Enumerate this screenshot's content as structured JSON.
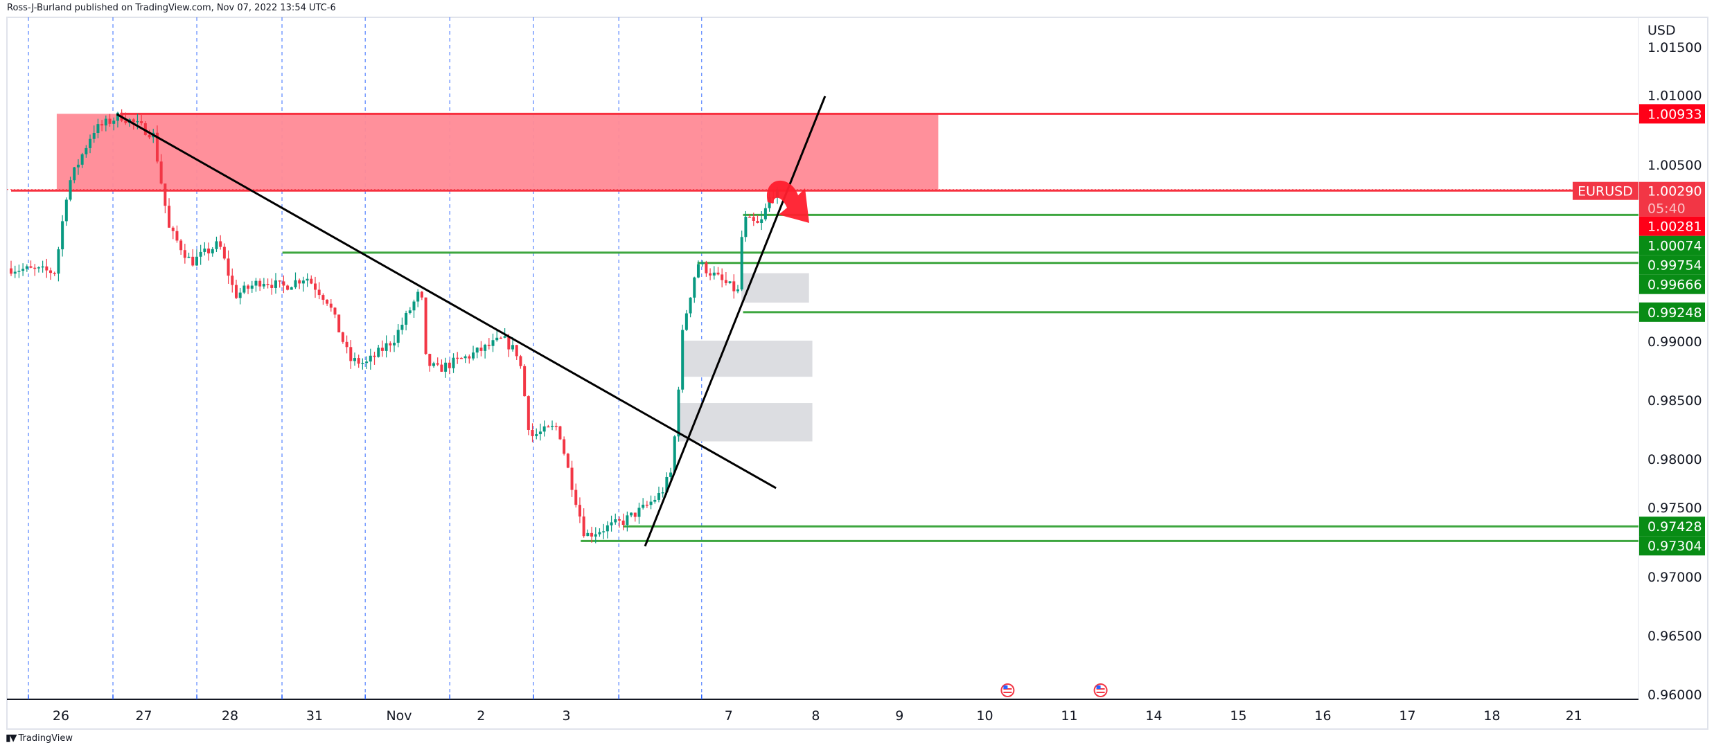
{
  "header": {
    "text": "Ross-J-Burland published on TradingView.com, Nov 07, 2022 13:54 UTC-6"
  },
  "footer": {
    "logo": "TV",
    "brand": "TradingView"
  },
  "colors": {
    "up": "#089981",
    "down": "#f23645",
    "level_green": "#3da63f",
    "label_green": "#088c15",
    "label_red": "#ff0018",
    "zone": "#ff8a96",
    "grey_box": "#dcdde1",
    "session": "#2962ff"
  },
  "chart_data": {
    "type": "candlestick",
    "symbol": "EURUSD",
    "currency": "USD",
    "last_price": "1.00290",
    "countdown": "05:40",
    "ylim": [
      0.96,
      1.015
    ],
    "y_ticks": [
      "1.01500",
      "1.01000",
      "1.00500",
      "0.99000",
      "0.98500",
      "0.98000",
      "0.97500",
      "0.97000",
      "0.96500",
      "0.96000"
    ],
    "x_labels": [
      {
        "t": 0,
        "label": "26"
      },
      {
        "t": 0.98,
        "label": "27"
      },
      {
        "t": 2.0,
        "label": "28"
      },
      {
        "t": 3.0,
        "label": "31"
      },
      {
        "t": 4.0,
        "label": "Nov"
      },
      {
        "t": 4.97,
        "label": "2"
      },
      {
        "t": 5.98,
        "label": "3"
      },
      {
        "t": 7.9,
        "label": "7"
      },
      {
        "t": 8.93,
        "label": "8"
      },
      {
        "t": 9.92,
        "label": "9"
      },
      {
        "t": 10.93,
        "label": "10"
      },
      {
        "t": 11.93,
        "label": "11"
      },
      {
        "t": 12.93,
        "label": "14"
      },
      {
        "t": 13.93,
        "label": "15"
      },
      {
        "t": 14.93,
        "label": "16"
      },
      {
        "t": 15.93,
        "label": "17"
      },
      {
        "t": 16.93,
        "label": "18"
      },
      {
        "t": 17.9,
        "label": "21"
      }
    ],
    "session_breaks": [
      -0.385,
      0.615,
      1.607,
      2.615,
      3.6,
      4.6,
      5.59,
      6.6,
      7.58
    ],
    "price_path": [
      [
        -0.59,
        0.9962
      ],
      [
        -0.07,
        0.9959
      ],
      [
        0.08,
        1.0032
      ],
      [
        0.38,
        1.0079
      ],
      [
        0.7,
        1.0092
      ],
      [
        1.09,
        1.0076
      ],
      [
        1.28,
        0.9995
      ],
      [
        1.54,
        0.9967
      ],
      [
        1.87,
        0.9983
      ],
      [
        2.06,
        0.9939
      ],
      [
        2.38,
        0.9952
      ],
      [
        2.62,
        0.9946
      ],
      [
        2.9,
        0.9955
      ],
      [
        3.16,
        0.9934
      ],
      [
        3.42,
        0.9884
      ],
      [
        3.61,
        0.9881
      ],
      [
        3.94,
        0.9902
      ],
      [
        4.26,
        0.9944
      ],
      [
        4.32,
        0.9882
      ],
      [
        4.45,
        0.9876
      ],
      [
        4.84,
        0.9888
      ],
      [
        5.23,
        0.9902
      ],
      [
        5.42,
        0.9888
      ],
      [
        5.55,
        0.9819
      ],
      [
        5.88,
        0.9828
      ],
      [
        6.0,
        0.9791
      ],
      [
        6.2,
        0.9735
      ],
      [
        6.65,
        0.9747
      ],
      [
        6.91,
        0.9759
      ],
      [
        7.1,
        0.9771
      ],
      [
        7.23,
        0.979
      ],
      [
        7.36,
        0.9912
      ],
      [
        7.53,
        0.9967
      ],
      [
        7.82,
        0.9951
      ],
      [
        8.01,
        0.9942
      ],
      [
        8.07,
        1.0004
      ],
      [
        8.27,
        0.9998
      ],
      [
        8.4,
        1.0025
      ],
      [
        8.49,
        1.0029
      ]
    ],
    "zone": {
      "t1": -0.05,
      "t2": 10.38,
      "top": 1.00933,
      "bottom": 1.0029
    },
    "grey_boxes": [
      {
        "t1": 8.05,
        "t2": 8.85,
        "top": 0.99579,
        "bottom": 0.99329
      },
      {
        "t1": 7.36,
        "t2": 8.89,
        "top": 0.99006,
        "bottom": 0.98699
      },
      {
        "t1": 7.3,
        "t2": 8.89,
        "top": 0.98476,
        "bottom": 0.9815
      }
    ],
    "trendlines": [
      {
        "t1": 0.66,
        "p1": 1.0093,
        "t2": 8.46,
        "p2": 0.97753
      },
      {
        "t1": 6.91,
        "p1": 0.97259,
        "t2": 9.04,
        "p2": 1.01083
      }
    ],
    "levels": [
      {
        "price": 1.00933,
        "t": 0.7,
        "color": "red",
        "label": "1.00933"
      },
      {
        "price": 1.00281,
        "t": -0.59,
        "color": "red",
        "label": "1.00281"
      },
      {
        "price": 1.00074,
        "t": 8.07,
        "color": "green",
        "label": "1.00074"
      },
      {
        "price": 0.99754,
        "t": 2.62,
        "color": "green",
        "label": "0.99754"
      },
      {
        "price": 0.99666,
        "t": 7.53,
        "color": "green",
        "label": "0.99666"
      },
      {
        "price": 0.99248,
        "t": 8.07,
        "color": "green",
        "label": "0.99248"
      },
      {
        "price": 0.97428,
        "t": 6.65,
        "color": "green",
        "label": "0.97428"
      },
      {
        "price": 0.97304,
        "t": 6.15,
        "color": "green",
        "label": "0.97304"
      }
    ],
    "events": [
      {
        "t": 11.2
      },
      {
        "t": 12.3
      }
    ]
  }
}
